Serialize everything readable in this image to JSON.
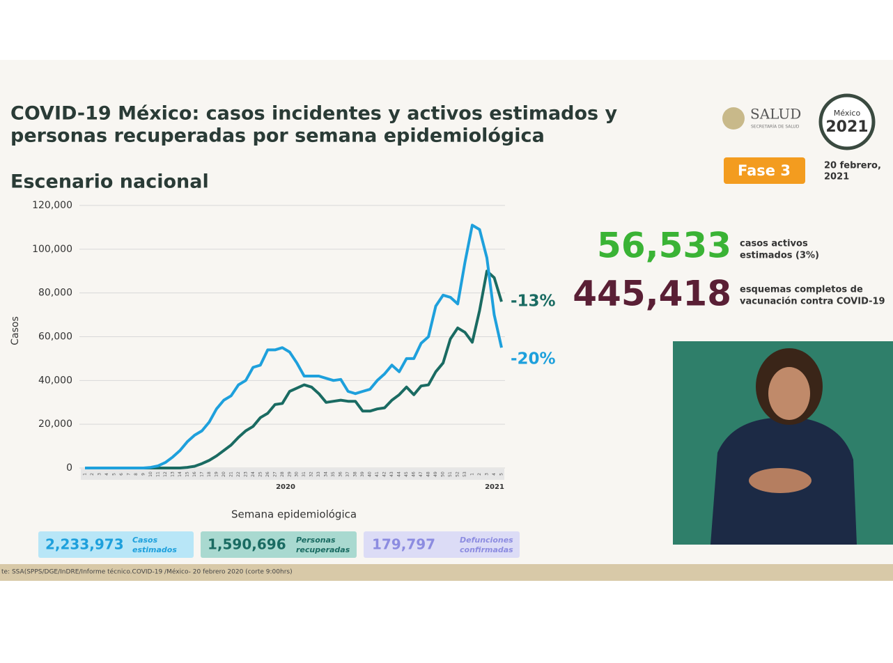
{
  "title_lines": [
    "COVID-19 México: casos incidentes y activos estimados y",
    "personas recuperadas por semana epidemiológica"
  ],
  "subtitle": "Escenario nacional",
  "logo": {
    "salud": "SALUD",
    "salud_sub": "SECRETARÍA DE SALUD",
    "mexico": "México",
    "year": "2021"
  },
  "phase": "Fase 3",
  "date_lines": [
    "20 febrero,",
    "2021"
  ],
  "stats": [
    {
      "value": "56,533",
      "label_lines": [
        "casos activos",
        "estimados (3%)"
      ]
    },
    {
      "value": "445,418",
      "label_lines": [
        "esquemas completos de",
        "vacunación contra COVID-19"
      ]
    }
  ],
  "boxes": [
    {
      "value": "2,233,973",
      "label_lines": [
        "Casos",
        "estimados"
      ]
    },
    {
      "value": "1,590,696",
      "label_lines": [
        "Personas",
        "recuperadas"
      ]
    },
    {
      "value": "179,797",
      "label_lines": [
        "Defunciones",
        "confirmadas"
      ]
    }
  ],
  "source": "te: SSA(SPPS/DGE/InDRE/Informe técnico.COVID-19 /México- 20 febrero 2020 (corte 9:00hrs)",
  "chart_data": {
    "type": "line",
    "y_label": "Casos",
    "x_label": "Semana epidemiológica",
    "year_labels": [
      "2020",
      "2021"
    ],
    "categories": [
      "1",
      "2",
      "3",
      "4",
      "5",
      "6",
      "7",
      "8",
      "9",
      "10",
      "11",
      "12",
      "13",
      "14",
      "15",
      "16",
      "17",
      "18",
      "19",
      "20",
      "21",
      "22",
      "23",
      "24",
      "25",
      "26",
      "27",
      "28",
      "29",
      "30",
      "31",
      "32",
      "33",
      "34",
      "35",
      "36",
      "37",
      "38",
      "39",
      "40",
      "41",
      "42",
      "43",
      "44",
      "45",
      "46",
      "47",
      "48",
      "49",
      "50",
      "51",
      "52",
      "53",
      "1",
      "2",
      "3",
      "4",
      "5"
    ],
    "series": [
      {
        "color": "#1ea0dc",
        "values": [
          0,
          0,
          0,
          0,
          0,
          0,
          0,
          0,
          0,
          300,
          1000,
          2500,
          5000,
          8000,
          12000,
          15000,
          17000,
          21000,
          27000,
          31000,
          33000,
          38000,
          40000,
          46000,
          47000,
          54000,
          54000,
          55000,
          53000,
          48000,
          42000,
          42000,
          42000,
          41000,
          40000,
          40500,
          35000,
          34000,
          35000,
          36000,
          40000,
          43000,
          47000,
          44000,
          50000,
          50000,
          57000,
          60000,
          74000,
          79000,
          78000,
          75000,
          94000,
          111000,
          109000,
          96000,
          70000,
          55000
        ]
      },
      {
        "color": "#1a6b62",
        "values": [
          0,
          0,
          0,
          0,
          0,
          0,
          0,
          0,
          0,
          0,
          0,
          0,
          0,
          0,
          300,
          800,
          2000,
          3500,
          5500,
          8000,
          10500,
          14000,
          17000,
          19000,
          23000,
          25000,
          29000,
          29500,
          35000,
          36500,
          38000,
          37000,
          34000,
          30000,
          30500,
          31000,
          30500,
          30500,
          26000,
          26000,
          27000,
          27500,
          31000,
          33500,
          37000,
          33500,
          37500,
          38000,
          44000,
          48000,
          59000,
          64000,
          62000,
          57500,
          72000,
          90000,
          87000,
          76000
        ]
      }
    ],
    "annotations": [
      "-13%",
      "-20%"
    ],
    "ylim": [
      0,
      120000
    ],
    "yticks": [
      0,
      {
        "value": 20000,
        "label": "20,000"
      },
      {
        "value": 40000,
        "label": "40,000"
      },
      {
        "value": 60000,
        "label": "60,000"
      },
      {
        "value": 80000,
        "label": "80,000"
      },
      {
        "value": 100000,
        "label": "100,000"
      },
      {
        "value": 120000,
        "label": "120,000"
      }
    ],
    "grid": true
  }
}
